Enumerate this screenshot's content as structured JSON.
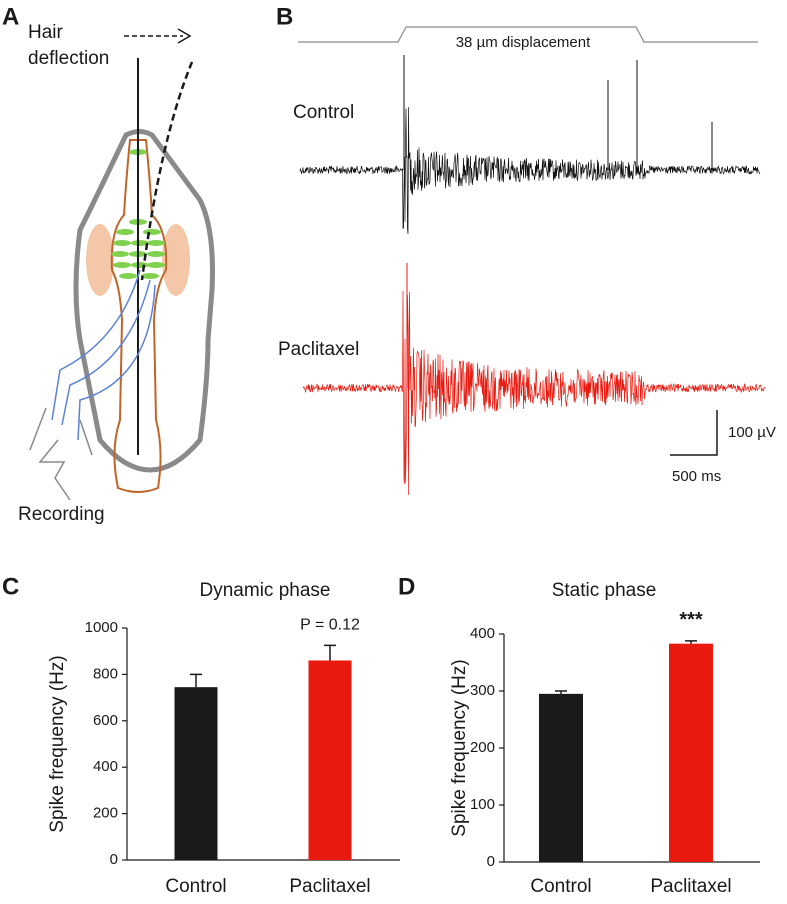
{
  "figure": {
    "panel_labels": [
      "A",
      "B",
      "C",
      "D"
    ],
    "diagram": {
      "hair_label": [
        "Hair",
        "deflection"
      ],
      "recording_label": "Recording"
    },
    "traces": {
      "stimulus_label": "38 µm displacement",
      "trace_labels": [
        "Control",
        "Paclitaxel"
      ],
      "scale_y": "100 µV",
      "scale_x": "500 ms"
    }
  },
  "chart_data": [
    {
      "type": "bar",
      "title": "Dynamic phase",
      "y_label": "Spike frequency (Hz)",
      "categories": [
        "Control",
        "Paclitaxel"
      ],
      "values": [
        745,
        860
      ],
      "errors": [
        55,
        65
      ],
      "colors": [
        "#1a1a1a",
        "#e8190f"
      ],
      "annotation": "P = 0.12",
      "ylim": [
        0,
        1000
      ],
      "yticks": [
        0,
        200,
        400,
        600,
        800,
        1000
      ]
    },
    {
      "type": "bar",
      "title": "Static phase",
      "y_label": "Spike frequency (Hz)",
      "categories": [
        "Control",
        "Paclitaxel"
      ],
      "values": [
        295,
        383
      ],
      "errors": [
        5,
        5
      ],
      "colors": [
        "#1a1a1a",
        "#e8190f"
      ],
      "annotation": "***",
      "ylim": [
        0,
        400
      ],
      "yticks": [
        0,
        100,
        200,
        300,
        400
      ]
    }
  ]
}
